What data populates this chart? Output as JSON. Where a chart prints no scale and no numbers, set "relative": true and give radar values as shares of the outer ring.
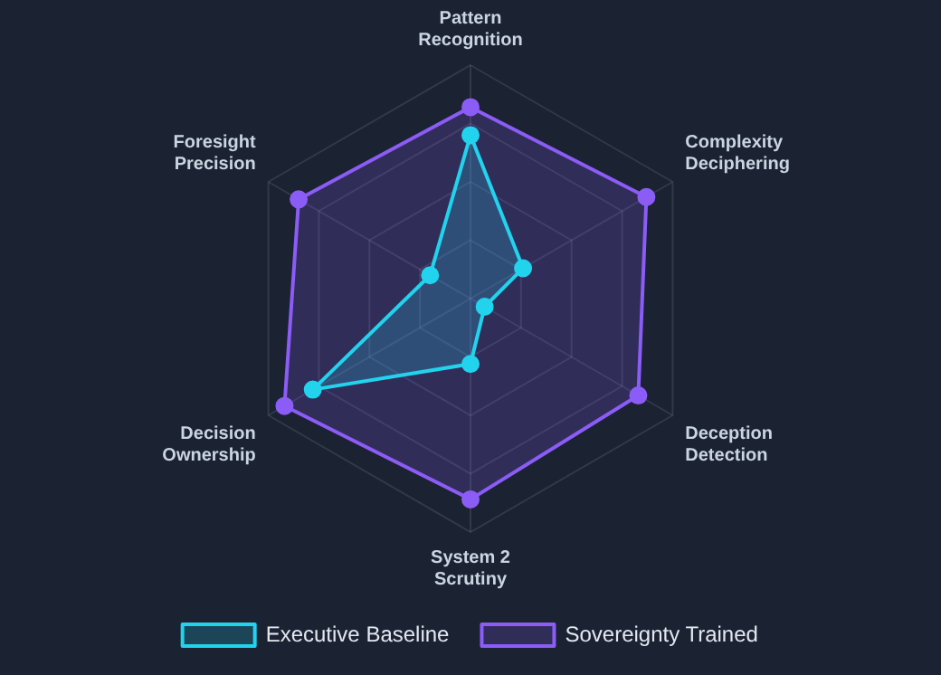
{
  "chart_data": {
    "type": "radar",
    "relative": true,
    "legend": "bottom",
    "marker": "circle",
    "categories": [
      "Pattern Recognition",
      "Complexity Deciphering",
      "Deception Detection",
      "System 2 Scrutiny",
      "Decision Ownership",
      "Foresight Precision"
    ],
    "series": [
      {
        "name": "Executive Baseline",
        "color": "#22d3ee",
        "values": [
          0.7,
          0.26,
          0.07,
          0.28,
          0.78,
          0.2
        ]
      },
      {
        "name": "Sovereignty Trained",
        "color": "#8b5cf6",
        "values": [
          0.82,
          0.87,
          0.83,
          0.86,
          0.92,
          0.85
        ]
      }
    ]
  }
}
